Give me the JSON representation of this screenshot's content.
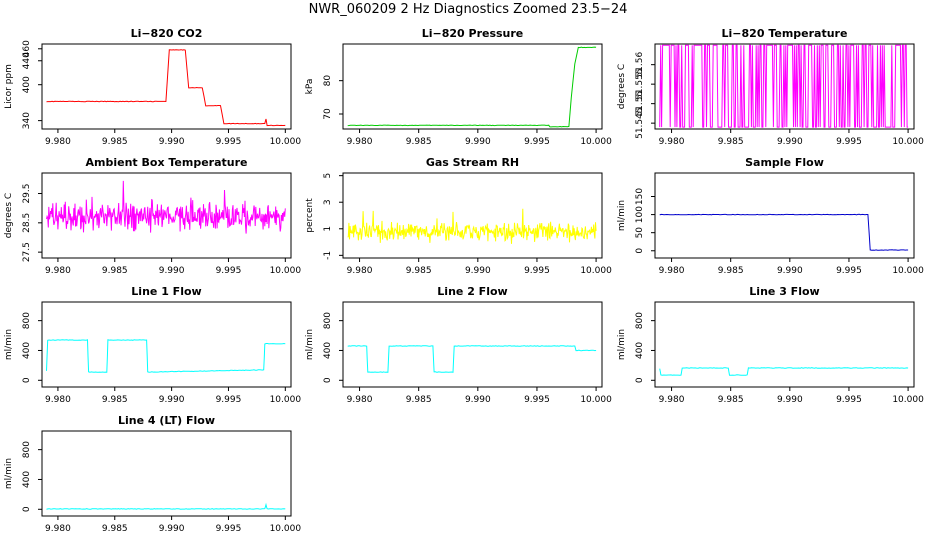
{
  "figure": {
    "title": "NWR_060209  2 Hz Diagnostics Zoomed 23.5−24"
  },
  "chart_data": [
    {
      "type": "line",
      "title": "Li−820 CO2",
      "ylabel": "Licor ppm",
      "color": "#ff0000",
      "xlim": [
        9.9786,
        10.0005
      ],
      "ylim": [
        326,
        468
      ],
      "xticks": [
        "9.980",
        "9.985",
        "9.990",
        "9.995",
        "10.000"
      ],
      "yticks": [
        340,
        400,
        440,
        460
      ],
      "series": [
        {
          "x": [
            9.979,
            9.9895,
            9.9898,
            9.9912,
            9.9915,
            9.9927,
            9.993,
            9.9943,
            9.9946,
            9.9982,
            9.9983,
            9.9984,
            10.0
          ],
          "y": [
            372,
            372,
            458,
            458,
            395,
            395,
            365,
            365,
            335,
            335,
            343,
            332,
            332
          ]
        }
      ]
    },
    {
      "type": "line",
      "title": "Li−820 Pressure",
      "ylabel": "kPa",
      "color": "#00cc00",
      "xlim": [
        9.9786,
        10.0005
      ],
      "ylim": [
        65.5,
        91
      ],
      "xticks": [
        "9.980",
        "9.985",
        "9.990",
        "9.995",
        "10.000"
      ],
      "yticks": [
        70,
        80
      ],
      "series": [
        {
          "x": [
            9.979,
            9.996,
            9.9961,
            9.9977,
            9.9979,
            9.9982,
            9.9985,
            10.0
          ],
          "y": [
            66.6,
            66.6,
            66.2,
            66.2,
            75,
            85,
            90,
            90
          ]
        }
      ]
    },
    {
      "type": "line",
      "title": "Li−820 Temperature",
      "ylabel": "degrees C",
      "color": "#ff00ff",
      "xlim": [
        9.9786,
        10.0005
      ],
      "ylim": [
        51.5435,
        51.5653
      ],
      "xticks": [
        "9.980",
        "9.985",
        "9.990",
        "9.995",
        "10.000"
      ],
      "yticks": [
        51.545,
        51.55,
        51.555,
        51.56
      ],
      "series": [
        {
          "name": "",
          "style": "toggle",
          "low": 51.544,
          "high": 51.565
        }
      ]
    },
    {
      "type": "line",
      "title": "Ambient Box Temperature",
      "ylabel": "degrees C",
      "color": "#ff00ff",
      "xlim": [
        9.9786,
        10.0005
      ],
      "ylim": [
        27.3,
        30.2
      ],
      "xticks": [
        "9.980",
        "9.985",
        "9.990",
        "9.995",
        "10.000"
      ],
      "yticks": [
        27.5,
        28.5,
        29.5
      ],
      "series": [
        {
          "name": "",
          "style": "noise",
          "mean": 28.7,
          "spread": 0.45
        }
      ]
    },
    {
      "type": "line",
      "title": "Gas Stream RH",
      "ylabel": "percent",
      "color": "#ffff00",
      "xlim": [
        9.9786,
        10.0005
      ],
      "ylim": [
        -1.2,
        5.2
      ],
      "xticks": [
        "9.980",
        "9.985",
        "9.990",
        "9.995",
        "10.000"
      ],
      "yticks": [
        -1,
        1,
        3,
        5
      ],
      "series": [
        {
          "name": "",
          "style": "noise",
          "mean": 0.8,
          "spread": 0.7
        }
      ]
    },
    {
      "type": "line",
      "title": "Sample Flow",
      "ylabel": "ml/min",
      "color": "#0000cc",
      "xlim": [
        9.9786,
        10.0005
      ],
      "ylim": [
        -20,
        215
      ],
      "xticks": [
        "9.980",
        "9.985",
        "9.990",
        "9.995",
        "10.000"
      ],
      "yticks": [
        0,
        50,
        100,
        150
      ],
      "series": [
        {
          "x": [
            9.979,
            9.9966,
            9.9968,
            10.0
          ],
          "y": [
            100,
            100,
            2,
            2
          ]
        }
      ]
    },
    {
      "type": "line",
      "title": "Line 1 Flow",
      "ylabel": "ml/min",
      "color": "#00ffff",
      "xlim": [
        9.9786,
        10.0005
      ],
      "ylim": [
        -90,
        1050
      ],
      "xticks": [
        "9.980",
        "9.985",
        "9.990",
        "9.995",
        "10.000"
      ],
      "yticks": [
        0,
        400,
        800
      ],
      "series": [
        {
          "x": [
            9.979,
            9.9791,
            9.9826,
            9.9827,
            9.9843,
            9.9844,
            9.9878,
            9.9879,
            9.9981,
            9.9982,
            10.0
          ],
          "y": [
            130,
            540,
            540,
            110,
            110,
            540,
            540,
            110,
            140,
            490,
            490
          ]
        }
      ]
    },
    {
      "type": "line",
      "title": "Line 2 Flow",
      "ylabel": "ml/min",
      "color": "#00ffff",
      "xlim": [
        9.9786,
        10.0005
      ],
      "ylim": [
        -90,
        1050
      ],
      "xticks": [
        "9.980",
        "9.985",
        "9.990",
        "9.995",
        "10.000"
      ],
      "yticks": [
        0,
        400,
        800
      ],
      "series": [
        {
          "x": [
            9.979,
            9.9806,
            9.9807,
            9.9824,
            9.9825,
            9.9862,
            9.9863,
            9.9879,
            9.988,
            9.9982,
            9.9983,
            10.0
          ],
          "y": [
            460,
            460,
            110,
            110,
            460,
            460,
            110,
            110,
            460,
            460,
            400,
            400
          ]
        }
      ]
    },
    {
      "type": "line",
      "title": "Line 3 Flow",
      "ylabel": "ml/min",
      "color": "#00ffff",
      "xlim": [
        9.9786,
        10.0005
      ],
      "ylim": [
        -90,
        1050
      ],
      "xticks": [
        "9.980",
        "9.985",
        "9.990",
        "9.995",
        "10.000"
      ],
      "yticks": [
        0,
        400,
        800
      ],
      "series": [
        {
          "x": [
            9.979,
            9.9791,
            9.9808,
            9.9809,
            9.9848,
            9.9849,
            9.9864,
            9.9865,
            10.0
          ],
          "y": [
            160,
            70,
            70,
            165,
            165,
            70,
            70,
            165,
            165
          ]
        }
      ]
    },
    {
      "type": "line",
      "title": "Line 4 (LT) Flow",
      "ylabel": "ml/min",
      "color": "#00ffff",
      "xlim": [
        9.9786,
        10.0005
      ],
      "ylim": [
        -90,
        1050
      ],
      "xticks": [
        "9.980",
        "9.985",
        "9.990",
        "9.995",
        "10.000"
      ],
      "yticks": [
        0,
        400,
        800
      ],
      "series": [
        {
          "x": [
            9.979,
            9.9982,
            9.9983,
            9.9984,
            10.0
          ],
          "y": [
            5,
            5,
            60,
            5,
            5
          ]
        }
      ]
    }
  ]
}
